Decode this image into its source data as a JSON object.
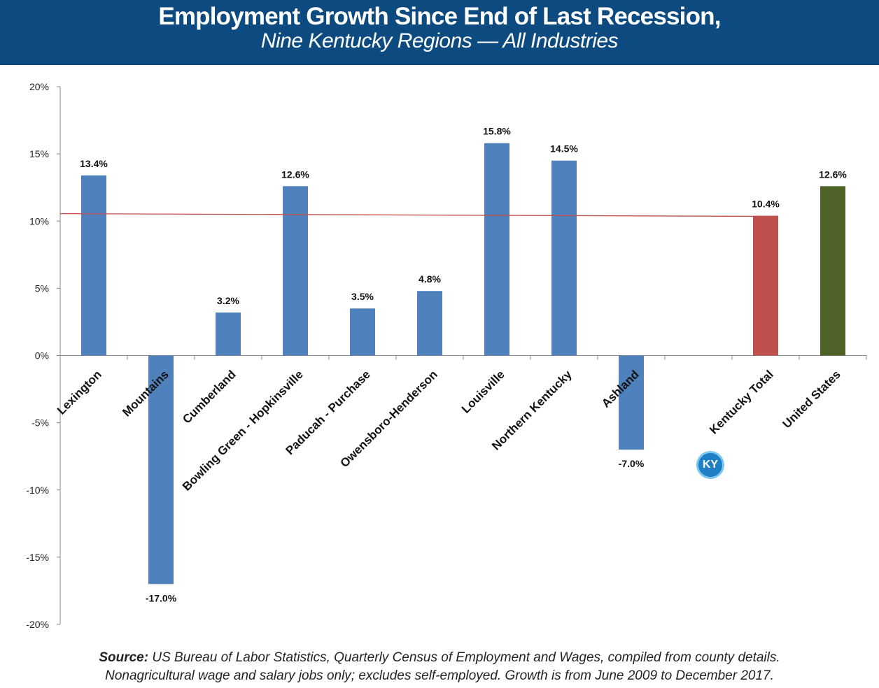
{
  "header": {
    "title": "Employment Growth Since End of Last Recession,",
    "subtitle": "Nine Kentucky Regions — All Industries"
  },
  "footer": {
    "source_label": "Source:",
    "source_text": " US Bureau of Labor Statistics, Quarterly Census of Employment and Wages, compiled from county details.",
    "note": "Nonagricultural wage and salary jobs only; excludes self-employed. Growth is from June 2009 to December 2017."
  },
  "badge": {
    "text": "KY",
    "icon": "kentucky-logo-icon"
  },
  "colors": {
    "region": "#4f81bd",
    "kentucky_total": "#c0504d",
    "united_states": "#4f6228",
    "reference_line": "#c0504d",
    "header_bg": "#0d4a80"
  },
  "chart_data": {
    "type": "bar",
    "categories": [
      "Lexington",
      "Mountains",
      "Cumberland",
      "Bowling Green - Hopkinsville",
      "Paducah - Purchase",
      "Owensboro-Henderson",
      "Louisville",
      "Northern Kentucky",
      "Ashland",
      "",
      "Kentucky Total",
      "United States"
    ],
    "values": [
      13.4,
      -17.0,
      3.2,
      12.6,
      3.5,
      4.8,
      15.8,
      14.5,
      -7.0,
      null,
      10.4,
      12.6
    ],
    "data_labels": [
      "13.4%",
      "-17.0%",
      "3.2%",
      "12.6%",
      "3.5%",
      "4.8%",
      "15.8%",
      "14.5%",
      "-7.0%",
      "",
      "10.4%",
      "12.6%"
    ],
    "bar_colors": [
      "#4f81bd",
      "#4f81bd",
      "#4f81bd",
      "#4f81bd",
      "#4f81bd",
      "#4f81bd",
      "#4f81bd",
      "#4f81bd",
      "#4f81bd",
      "#4f81bd",
      "#c0504d",
      "#4f6228"
    ],
    "reference_line": {
      "value": 10.4
    },
    "y_ticks": [
      20,
      15,
      10,
      5,
      0,
      -5,
      -10,
      -15,
      -20
    ],
    "y_tick_labels": [
      "20%",
      "15%",
      "10%",
      "5%",
      "0%",
      "-5%",
      "-10%",
      "-15%",
      "-20%"
    ],
    "ylim": [
      -20,
      20
    ],
    "xlabel": "",
    "ylabel": "",
    "grid": false,
    "legend": "none"
  }
}
